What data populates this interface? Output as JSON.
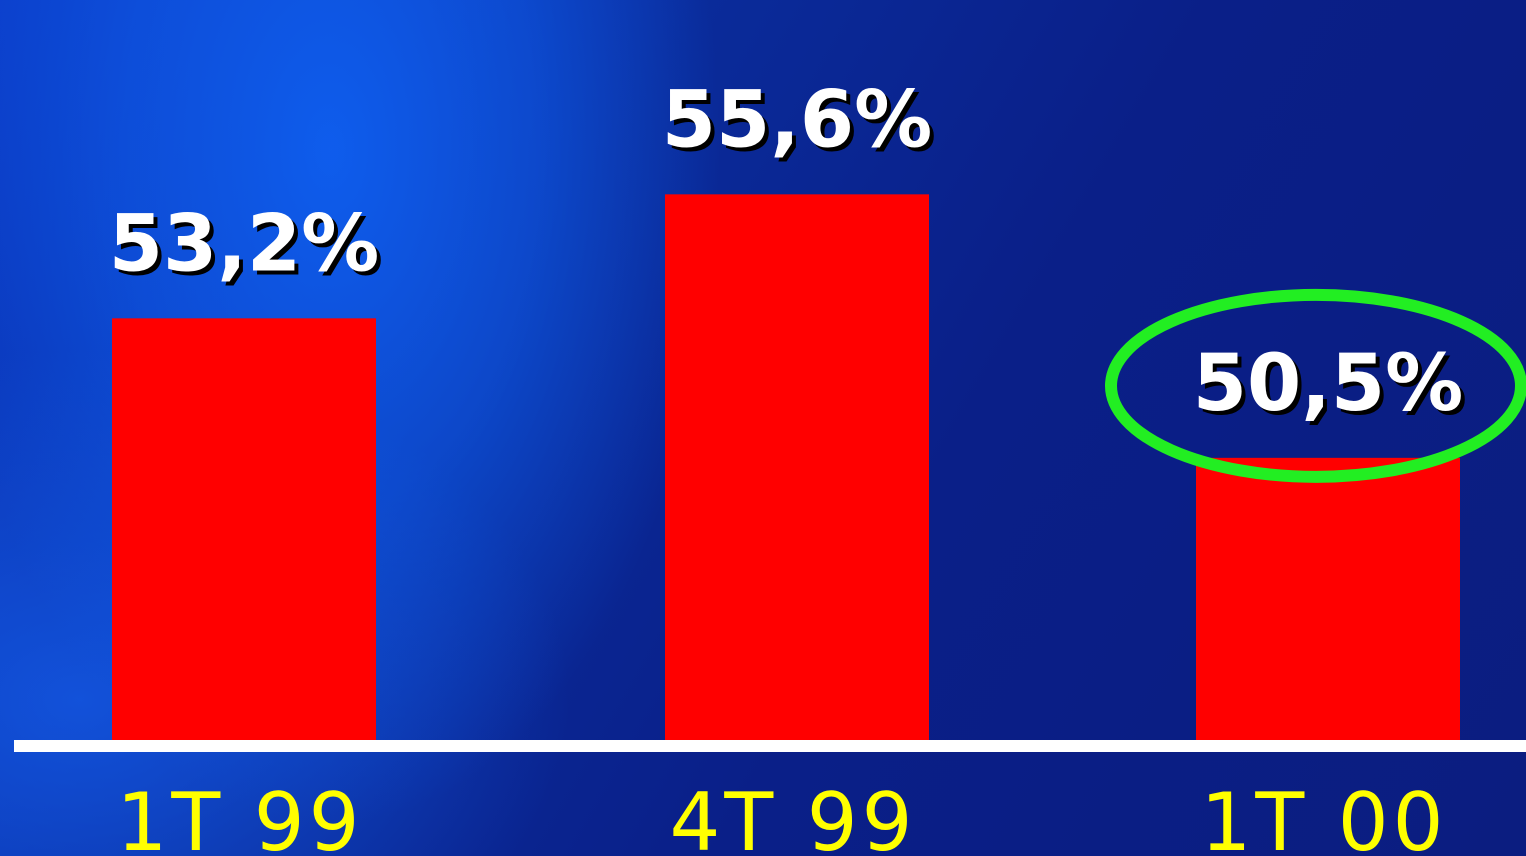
{
  "chart_data": {
    "type": "bar",
    "categories": [
      "1T 99",
      "4T 99",
      "1T 00"
    ],
    "values": [
      53.2,
      55.6,
      50.5
    ],
    "value_labels": [
      "53,2%",
      "55,6%",
      "50,5%"
    ],
    "highlighted_index": 2,
    "ylim": [
      45,
      57
    ],
    "grid": false,
    "title": "",
    "xlabel": "",
    "ylabel": ""
  },
  "colors": {
    "bar": "#ff0000",
    "axis": "#ffffff",
    "value_label": "#ffffff",
    "category_label": "#ffff00",
    "highlight_ellipse": "#22ee22"
  }
}
